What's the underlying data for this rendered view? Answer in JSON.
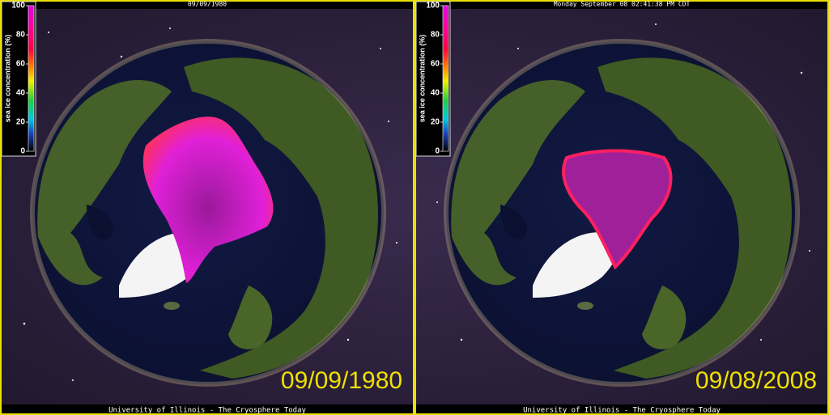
{
  "panels": [
    {
      "header": "09/09/1980",
      "date": "09/09/1980",
      "footer": "University of Illinois - The Cryosphere Today",
      "colorbar": {
        "label": "sea ice concentration (%)",
        "lim": [
          0,
          100
        ],
        "ticks": [
          100,
          80,
          60,
          40,
          20,
          0
        ]
      }
    },
    {
      "header": "Monday September 08 02:41:38 PM CDT",
      "date": "09/08/2008",
      "footer": "University of Illinois - The Cryosphere Today",
      "colorbar": {
        "label": "sea ice concentration (%)",
        "lim": [
          0,
          100
        ],
        "ticks": [
          100,
          80,
          60,
          40,
          20,
          0
        ]
      }
    }
  ]
}
